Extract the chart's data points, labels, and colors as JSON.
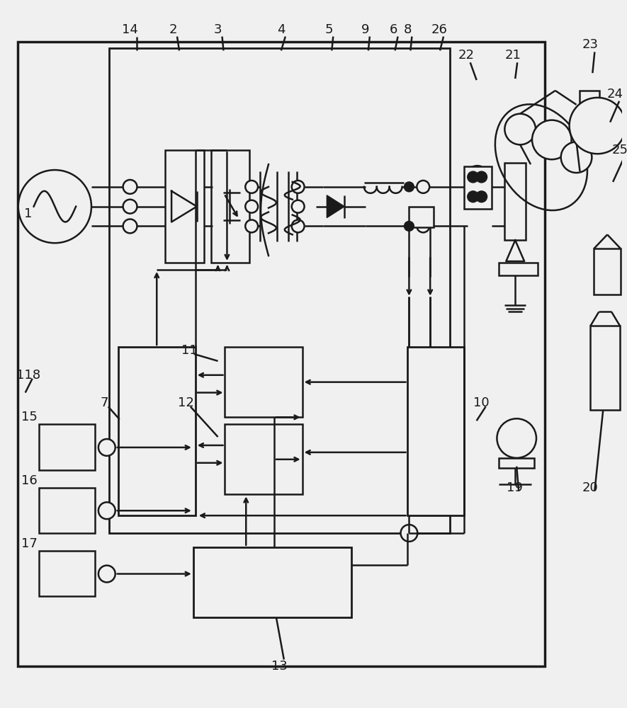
{
  "bg_color": "#f0f0f0",
  "line_color": "#1a1a1a",
  "lw": 1.8,
  "fig_w": 8.85,
  "fig_h": 10.0
}
